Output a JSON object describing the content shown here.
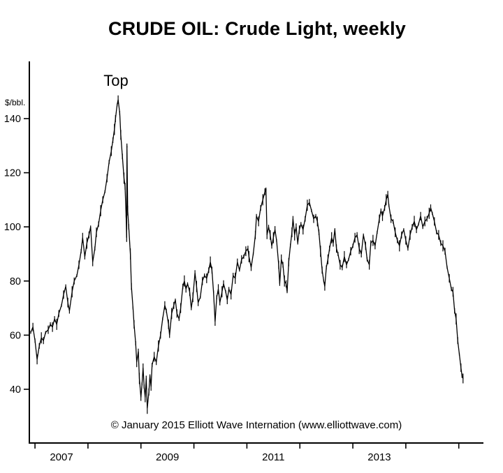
{
  "page": {
    "background_color": "#ffffff",
    "line_color": "#000000"
  },
  "chart_data": {
    "type": "line",
    "title": "CRUDE OIL: Crude Light, weekly",
    "annotation": "Top",
    "ylabel": "$/bbl.",
    "copyright": "© January 2015 Elliott Wave Internation (www.elliottwave.com)",
    "grid": false,
    "legend": "none",
    "ylim": [
      30,
      152
    ],
    "y_ticks": [
      40,
      60,
      80,
      100,
      120,
      140
    ],
    "xlim": [
      2006.92,
      2015.15
    ],
    "x_axis_tick_years": [
      2007,
      2008,
      2009,
      2010,
      2011,
      2012,
      2013,
      2014,
      2015
    ],
    "x_tick_labels": [
      {
        "label": "2007",
        "year": 2007.5
      },
      {
        "label": "2009",
        "year": 2009.5
      },
      {
        "label": "2011",
        "year": 2011.5
      },
      {
        "label": "2013",
        "year": 2013.5
      }
    ],
    "series": [
      {
        "name": "Crude Light weekly price ($/bbl)",
        "color": "#000000",
        "points": [
          [
            2006.92,
            61
          ],
          [
            2006.96,
            63
          ],
          [
            2007.0,
            58
          ],
          [
            2007.04,
            51
          ],
          [
            2007.08,
            56
          ],
          [
            2007.12,
            59
          ],
          [
            2007.16,
            58
          ],
          [
            2007.2,
            61
          ],
          [
            2007.25,
            62
          ],
          [
            2007.29,
            64
          ],
          [
            2007.33,
            63
          ],
          [
            2007.37,
            66
          ],
          [
            2007.41,
            64
          ],
          [
            2007.45,
            68
          ],
          [
            2007.5,
            71
          ],
          [
            2007.54,
            75
          ],
          [
            2007.58,
            78
          ],
          [
            2007.62,
            72
          ],
          [
            2007.65,
            69
          ],
          [
            2007.7,
            76
          ],
          [
            2007.74,
            80
          ],
          [
            2007.79,
            82
          ],
          [
            2007.83,
            86
          ],
          [
            2007.87,
            91
          ],
          [
            2007.9,
            96
          ],
          [
            2007.94,
            89
          ],
          [
            2007.98,
            94
          ],
          [
            2008.02,
            97
          ],
          [
            2008.05,
            100
          ],
          [
            2008.09,
            87
          ],
          [
            2008.13,
            92
          ],
          [
            2008.16,
            98
          ],
          [
            2008.2,
            101
          ],
          [
            2008.24,
            106
          ],
          [
            2008.28,
            110
          ],
          [
            2008.32,
            113
          ],
          [
            2008.36,
            118
          ],
          [
            2008.4,
            124
          ],
          [
            2008.44,
            128
          ],
          [
            2008.47,
            132
          ],
          [
            2008.5,
            136
          ],
          [
            2008.52,
            140
          ],
          [
            2008.55,
            145
          ],
          [
            2008.57,
            147
          ],
          [
            2008.6,
            142
          ],
          [
            2008.62,
            134
          ],
          [
            2008.65,
            126
          ],
          [
            2008.68,
            118
          ],
          [
            2008.7,
            115
          ],
          [
            2008.72,
            104
          ],
          [
            2008.73,
            96
          ],
          [
            2008.735,
            130
          ],
          [
            2008.75,
            106
          ],
          [
            2008.77,
            100
          ],
          [
            2008.8,
            90
          ],
          [
            2008.82,
            78
          ],
          [
            2008.85,
            70
          ],
          [
            2008.87,
            64
          ],
          [
            2008.9,
            57
          ],
          [
            2008.92,
            50
          ],
          [
            2008.95,
            54
          ],
          [
            2008.97,
            44
          ],
          [
            2009.0,
            37
          ],
          [
            2009.02,
            42
          ],
          [
            2009.04,
            48
          ],
          [
            2009.06,
            41
          ],
          [
            2009.08,
            37
          ],
          [
            2009.1,
            44
          ],
          [
            2009.12,
            33
          ],
          [
            2009.15,
            39
          ],
          [
            2009.17,
            45
          ],
          [
            2009.19,
            41
          ],
          [
            2009.21,
            49
          ],
          [
            2009.25,
            52
          ],
          [
            2009.29,
            50
          ],
          [
            2009.33,
            56
          ],
          [
            2009.37,
            60
          ],
          [
            2009.41,
            66
          ],
          [
            2009.45,
            71
          ],
          [
            2009.48,
            69
          ],
          [
            2009.52,
            64
          ],
          [
            2009.54,
            60
          ],
          [
            2009.58,
            68
          ],
          [
            2009.62,
            71
          ],
          [
            2009.65,
            73
          ],
          [
            2009.68,
            68
          ],
          [
            2009.72,
            66
          ],
          [
            2009.75,
            70
          ],
          [
            2009.79,
            78
          ],
          [
            2009.82,
            80
          ],
          [
            2009.85,
            77
          ],
          [
            2009.88,
            79
          ],
          [
            2009.92,
            76
          ],
          [
            2009.95,
            70
          ],
          [
            2009.98,
            74
          ],
          [
            2010.02,
            83
          ],
          [
            2010.05,
            78
          ],
          [
            2010.08,
            72
          ],
          [
            2010.12,
            74
          ],
          [
            2010.16,
            80
          ],
          [
            2010.2,
            82
          ],
          [
            2010.24,
            81
          ],
          [
            2010.28,
            84
          ],
          [
            2010.31,
            87
          ],
          [
            2010.34,
            84
          ],
          [
            2010.37,
            76
          ],
          [
            2010.4,
            65
          ],
          [
            2010.43,
            74
          ],
          [
            2010.46,
            77
          ],
          [
            2010.49,
            72
          ],
          [
            2010.53,
            76
          ],
          [
            2010.56,
            79
          ],
          [
            2010.6,
            76
          ],
          [
            2010.63,
            73
          ],
          [
            2010.66,
            77
          ],
          [
            2010.7,
            75
          ],
          [
            2010.74,
            82
          ],
          [
            2010.78,
            81
          ],
          [
            2010.82,
            87
          ],
          [
            2010.86,
            84
          ],
          [
            2010.9,
            88
          ],
          [
            2010.94,
            89
          ],
          [
            2010.98,
            91
          ],
          [
            2011.02,
            92
          ],
          [
            2011.04,
            89
          ],
          [
            2011.08,
            85
          ],
          [
            2011.12,
            90
          ],
          [
            2011.16,
            97
          ],
          [
            2011.18,
            104
          ],
          [
            2011.22,
            102
          ],
          [
            2011.26,
            107
          ],
          [
            2011.3,
            110
          ],
          [
            2011.34,
            113
          ],
          [
            2011.36,
            114
          ],
          [
            2011.38,
            97
          ],
          [
            2011.41,
            100
          ],
          [
            2011.44,
            97
          ],
          [
            2011.47,
            93
          ],
          [
            2011.5,
            96
          ],
          [
            2011.53,
            99
          ],
          [
            2011.56,
            95
          ],
          [
            2011.6,
            86
          ],
          [
            2011.62,
            79
          ],
          [
            2011.65,
            88
          ],
          [
            2011.68,
            86
          ],
          [
            2011.71,
            80
          ],
          [
            2011.74,
            79
          ],
          [
            2011.76,
            76
          ],
          [
            2011.79,
            87
          ],
          [
            2011.82,
            93
          ],
          [
            2011.85,
            98
          ],
          [
            2011.87,
            103
          ],
          [
            2011.9,
            97
          ],
          [
            2011.93,
            100
          ],
          [
            2011.96,
            94
          ],
          [
            2011.99,
            99
          ],
          [
            2012.02,
            101
          ],
          [
            2012.06,
            99
          ],
          [
            2012.1,
            103
          ],
          [
            2012.14,
            108
          ],
          [
            2012.18,
            109
          ],
          [
            2012.22,
            106
          ],
          [
            2012.26,
            103
          ],
          [
            2012.3,
            104
          ],
          [
            2012.33,
            102
          ],
          [
            2012.36,
            98
          ],
          [
            2012.39,
            91
          ],
          [
            2012.42,
            84
          ],
          [
            2012.45,
            80
          ],
          [
            2012.47,
            78
          ],
          [
            2012.5,
            85
          ],
          [
            2012.53,
            88
          ],
          [
            2012.56,
            92
          ],
          [
            2012.6,
            96
          ],
          [
            2012.63,
            94
          ],
          [
            2012.66,
            99
          ],
          [
            2012.69,
            92
          ],
          [
            2012.72,
            90
          ],
          [
            2012.76,
            86
          ],
          [
            2012.8,
            85
          ],
          [
            2012.84,
            89
          ],
          [
            2012.88,
            86
          ],
          [
            2012.92,
            88
          ],
          [
            2012.96,
            91
          ],
          [
            2013.0,
            93
          ],
          [
            2013.04,
            96
          ],
          [
            2013.08,
            97
          ],
          [
            2013.12,
            92
          ],
          [
            2013.16,
            90
          ],
          [
            2013.2,
            97
          ],
          [
            2013.24,
            93
          ],
          [
            2013.27,
            88
          ],
          [
            2013.31,
            86
          ],
          [
            2013.34,
            94
          ],
          [
            2013.38,
            95
          ],
          [
            2013.42,
            93
          ],
          [
            2013.46,
            98
          ],
          [
            2013.5,
            103
          ],
          [
            2013.53,
            106
          ],
          [
            2013.56,
            104
          ],
          [
            2013.6,
            107
          ],
          [
            2013.63,
            110
          ],
          [
            2013.66,
            112
          ],
          [
            2013.68,
            108
          ],
          [
            2013.72,
            103
          ],
          [
            2013.76,
            102
          ],
          [
            2013.8,
            98
          ],
          [
            2013.84,
            95
          ],
          [
            2013.88,
            93
          ],
          [
            2013.92,
            97
          ],
          [
            2013.96,
            99
          ],
          [
            2014.0,
            95
          ],
          [
            2014.04,
            92
          ],
          [
            2014.08,
            97
          ],
          [
            2014.12,
            100
          ],
          [
            2014.16,
            102
          ],
          [
            2014.2,
            99
          ],
          [
            2014.24,
            101
          ],
          [
            2014.28,
            104
          ],
          [
            2014.32,
            100
          ],
          [
            2014.36,
            102
          ],
          [
            2014.4,
            103
          ],
          [
            2014.44,
            105
          ],
          [
            2014.47,
            107
          ],
          [
            2014.5,
            105
          ],
          [
            2014.54,
            102
          ],
          [
            2014.58,
            98
          ],
          [
            2014.62,
            97
          ],
          [
            2014.66,
            94
          ],
          [
            2014.7,
            93
          ],
          [
            2014.74,
            91
          ],
          [
            2014.78,
            85
          ],
          [
            2014.82,
            81
          ],
          [
            2014.86,
            77
          ],
          [
            2014.89,
            76
          ],
          [
            2014.92,
            69
          ],
          [
            2014.95,
            66
          ],
          [
            2014.98,
            58
          ],
          [
            2015.01,
            53
          ],
          [
            2015.04,
            48
          ],
          [
            2015.06,
            45
          ],
          [
            2015.08,
            44
          ]
        ]
      }
    ]
  }
}
